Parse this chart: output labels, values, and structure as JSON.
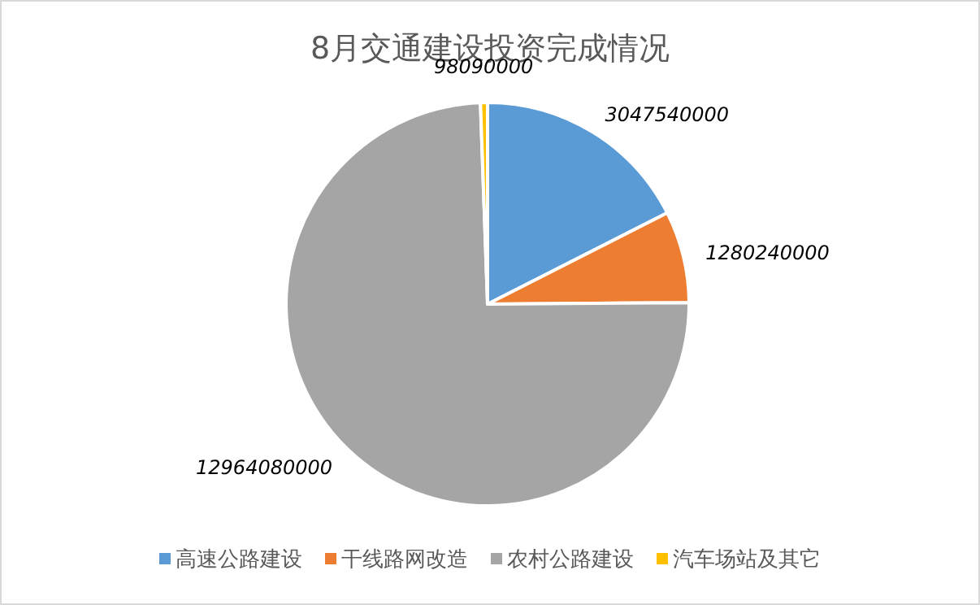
{
  "chart_data": {
    "type": "pie",
    "title": "8月交通建设投资完成情况",
    "categories": [
      "高速公路建设",
      "干线路网改造",
      "农村公路建设",
      "汽车场站及其它"
    ],
    "values": [
      3047540000,
      1280240000,
      12964080000,
      98090000
    ],
    "colors": [
      "#5b9bd5",
      "#ed7d31",
      "#a5a5a5",
      "#ffc000"
    ],
    "data_labels": true,
    "legend": "bottom"
  }
}
